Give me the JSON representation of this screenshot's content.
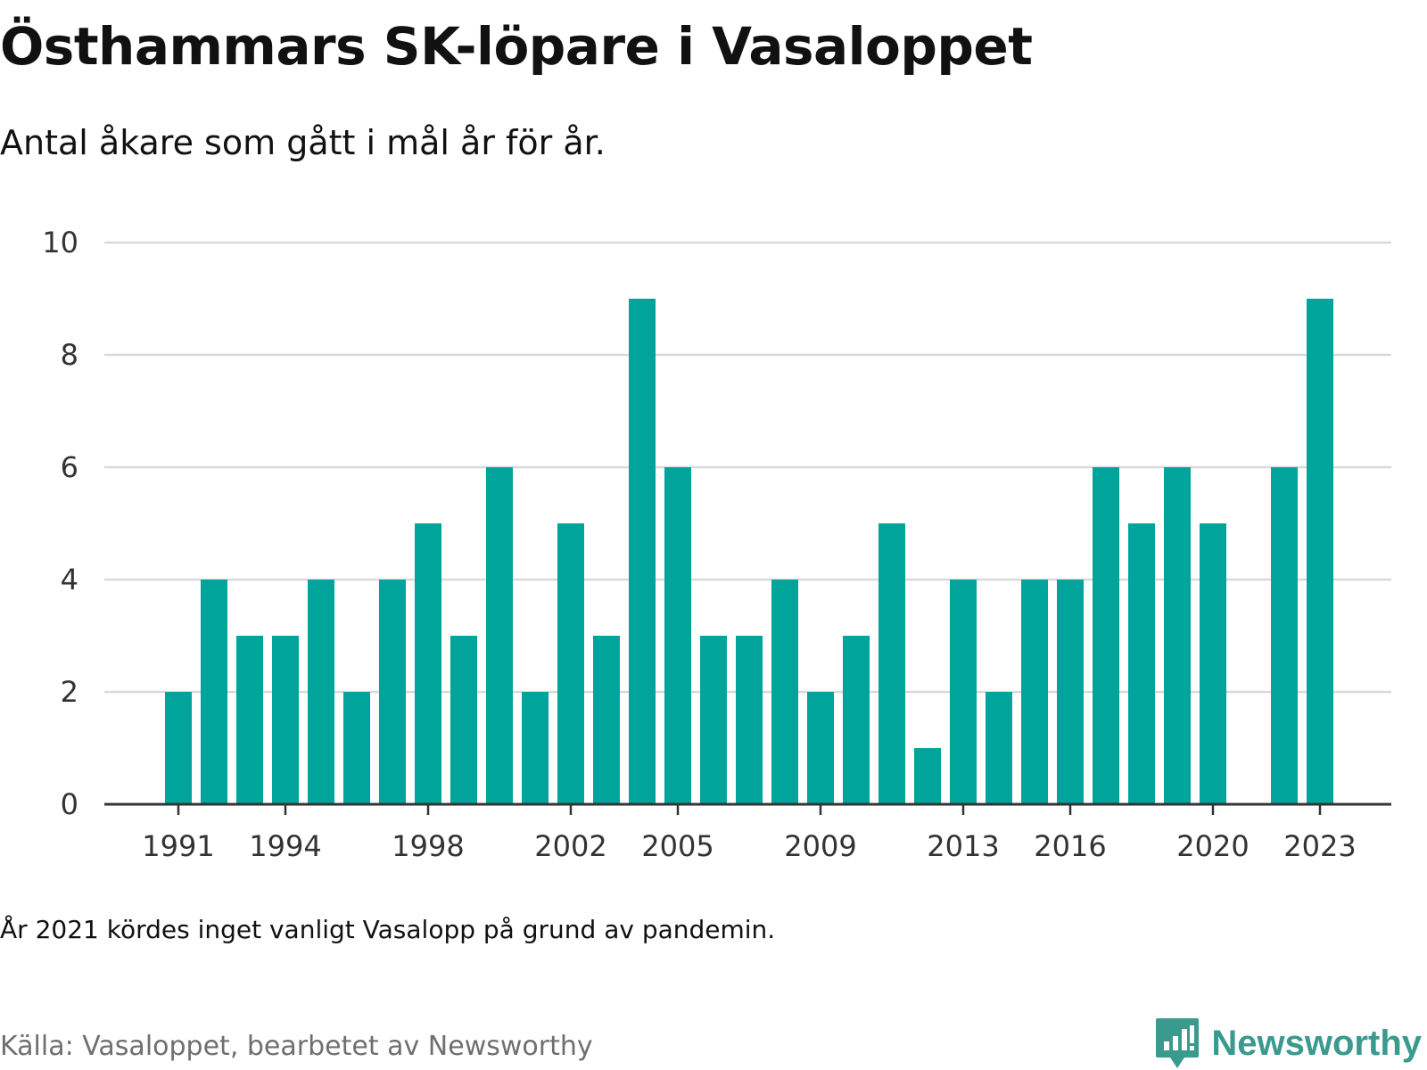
{
  "title": "Östhammars SK-löpare i Vasaloppet",
  "subtitle": "Antal åkare som gått i mål år för år.",
  "note": "År 2021 kördes inget vanligt Vasalopp på grund av pandemin.",
  "source": "Källa: Vasaloppet, bearbetet av Newsworthy",
  "brand": "Newsworthy",
  "colors": {
    "bar": "#00a49a",
    "grid": "#d9d9d9",
    "axis": "#333333",
    "brand": "#3a9a8e"
  },
  "chart_data": {
    "type": "bar",
    "x": [
      1991,
      1992,
      1993,
      1994,
      1995,
      1996,
      1997,
      1998,
      1999,
      2000,
      2001,
      2002,
      2003,
      2004,
      2005,
      2006,
      2007,
      2008,
      2009,
      2010,
      2011,
      2012,
      2013,
      2014,
      2015,
      2016,
      2017,
      2018,
      2019,
      2020,
      2021,
      2022,
      2023
    ],
    "values": [
      2,
      4,
      3,
      3,
      4,
      2,
      4,
      5,
      3,
      6,
      2,
      5,
      3,
      9,
      6,
      3,
      3,
      4,
      2,
      3,
      5,
      1,
      4,
      2,
      4,
      4,
      6,
      5,
      6,
      5,
      null,
      6,
      9
    ],
    "x_tick_labels": [
      1991,
      1994,
      1998,
      2002,
      2005,
      2009,
      2013,
      2016,
      2020,
      2023
    ],
    "y_ticks": [
      0,
      2,
      4,
      6,
      8,
      10
    ],
    "ylim": [
      0,
      10
    ],
    "grid": true,
    "legend": "none"
  }
}
